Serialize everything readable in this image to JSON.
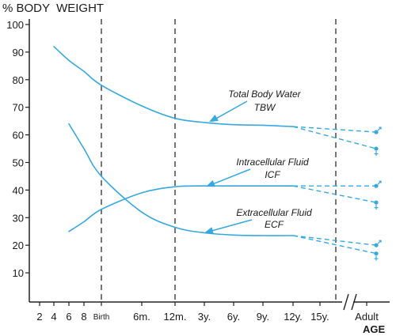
{
  "chart_data": {
    "type": "line",
    "title": "% BODY  WEIGHT",
    "xlabel": "AGE",
    "ylabel": "",
    "ylim": [
      0,
      100
    ],
    "yticks": [
      10,
      20,
      30,
      40,
      50,
      60,
      70,
      80,
      90,
      100
    ],
    "x_ticks": [
      "2",
      "4",
      "6",
      "8",
      "Birth",
      "6m.",
      "12m.",
      "3y.",
      "6y.",
      "9y.",
      "12y.",
      "15y.",
      "Adult"
    ],
    "axis_break_before": "Adult",
    "dividers_at": [
      "Birth",
      "12m.",
      "Adult"
    ],
    "grid": false,
    "colors": {
      "curve": "#35a8e0",
      "axis": "#222222",
      "divider": "#555555"
    },
    "series": [
      {
        "name": "Total Body Water TBW",
        "x": [
          "4",
          "6",
          "8",
          "Birth",
          "6m.",
          "12m.",
          "3y.",
          "6y.",
          "9y.",
          "12y."
        ],
        "values": [
          92,
          87,
          83,
          78,
          70.5,
          66,
          64.5,
          63.7,
          63.5,
          63
        ]
      },
      {
        "name": "Intracellular Fluid ICF",
        "x": [
          "6",
          "8",
          "Birth",
          "6m.",
          "12m.",
          "3y.",
          "6y.",
          "9y.",
          "12y."
        ],
        "values": [
          25,
          28.5,
          33,
          39,
          41.2,
          41.5,
          41.5,
          41.5,
          41.5
        ]
      },
      {
        "name": "Extracellular Fluid ECF",
        "x": [
          "6",
          "8",
          "Birth",
          "6m.",
          "12m.",
          "3y.",
          "6y.",
          "9y.",
          "12y."
        ],
        "values": [
          64,
          55,
          45,
          32,
          26.5,
          24.5,
          23.7,
          23.5,
          23.5
        ]
      }
    ],
    "adult_values": [
      {
        "series": "Total Body Water TBW",
        "male": 61,
        "female": 55
      },
      {
        "series": "Intracellular Fluid ICF",
        "male": 41.5,
        "female": 35.5
      },
      {
        "series": "Extracellular Fluid ECF",
        "male": 20,
        "female": 17
      }
    ],
    "annotations": [
      {
        "series": "Total Body Water TBW",
        "lines": [
          "Total Body Water",
          "TBW"
        ]
      },
      {
        "series": "Intracellular Fluid ICF",
        "lines": [
          "Intracellular Fluid",
          "ICF"
        ]
      },
      {
        "series": "Extracellular Fluid ECF",
        "lines": [
          "Extracellular Fluid",
          "ECF"
        ]
      }
    ],
    "icons": {
      "male": "male-symbol-icon",
      "female": "female-symbol-icon"
    }
  }
}
